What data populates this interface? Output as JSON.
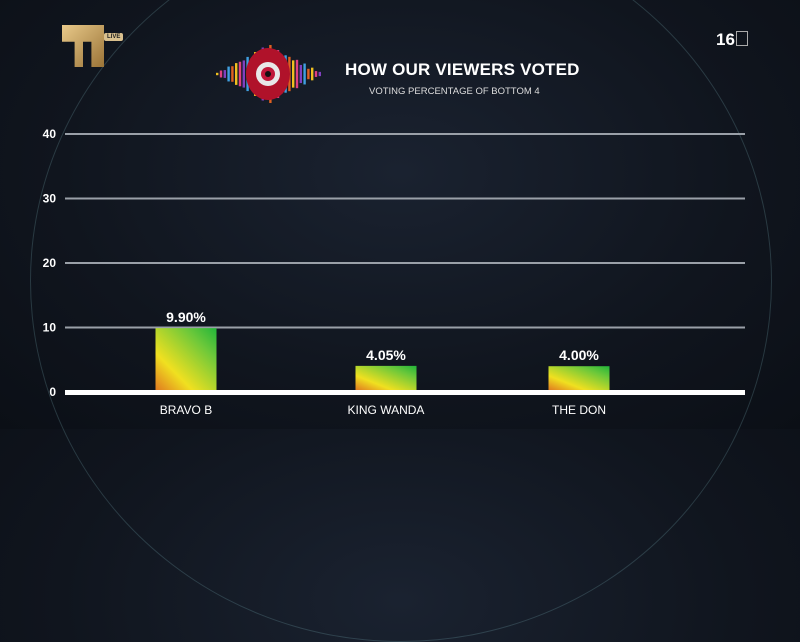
{
  "header": {
    "live_badge": "LIVE",
    "rating": "16",
    "title": "HOW OUR VIEWERS VOTED",
    "subtitle": "VOTING PERCENTAGE OF BOTTOM 4"
  },
  "chart_data": {
    "type": "bar",
    "title": "HOW OUR VIEWERS VOTED",
    "subtitle": "VOTING PERCENTAGE OF BOTTOM 4",
    "categories": [
      "BRAVO B",
      "KING WANDA",
      "THE DON"
    ],
    "values": [
      9.9,
      4.05,
      4.0
    ],
    "data_labels": [
      "9.90%",
      "4.05%",
      "4.00%"
    ],
    "yticks": [
      0,
      10,
      20,
      30,
      40
    ],
    "ylim": [
      0,
      40
    ],
    "grid": true,
    "colors": {
      "bar_top": "#22b53a",
      "bar_bottom": "#f0e020",
      "bar_accent": "#e07a20",
      "grid": "#9aa0a8",
      "baseline": "#ffffff"
    }
  }
}
